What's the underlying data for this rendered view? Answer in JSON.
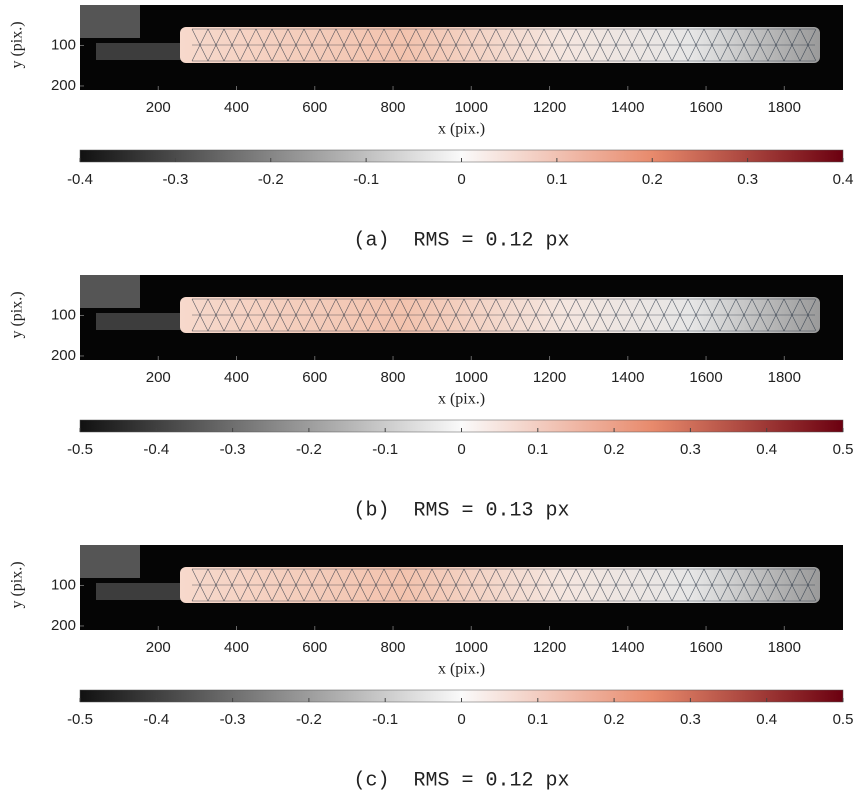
{
  "chart_data": [
    {
      "type": "image",
      "xlabel": "x (pix.)",
      "ylabel": "y (pix.)",
      "xlim": [
        0,
        1950
      ],
      "xticks": [
        200,
        400,
        600,
        800,
        1000,
        1200,
        1400,
        1600,
        1800
      ],
      "ylim": [
        0,
        210
      ],
      "yticks": [
        100,
        200
      ],
      "clim": [
        -0.4,
        0.4
      ],
      "cticks": [
        -0.4,
        -0.3,
        -0.2,
        -0.1,
        0,
        0.1,
        0.2,
        0.3,
        0.4
      ],
      "caption": "(a)  RMS = 0.12 px"
    },
    {
      "type": "image",
      "xlabel": "x (pix.)",
      "ylabel": "y (pix.)",
      "xlim": [
        0,
        1950
      ],
      "xticks": [
        200,
        400,
        600,
        800,
        1000,
        1200,
        1400,
        1600,
        1800
      ],
      "ylim": [
        0,
        210
      ],
      "yticks": [
        100,
        200
      ],
      "clim": [
        -0.5,
        0.5
      ],
      "cticks": [
        -0.5,
        -0.4,
        -0.3,
        -0.2,
        -0.1,
        0,
        0.1,
        0.2,
        0.3,
        0.4,
        0.5
      ],
      "caption": "(b)  RMS = 0.13 px"
    },
    {
      "type": "image",
      "xlabel": "x (pix.)",
      "ylabel": "y (pix.)",
      "xlim": [
        0,
        1950
      ],
      "xticks": [
        200,
        400,
        600,
        800,
        1000,
        1200,
        1400,
        1600,
        1800
      ],
      "ylim": [
        0,
        210
      ],
      "yticks": [
        100,
        200
      ],
      "clim": [
        -0.5,
        0.5
      ],
      "cticks": [
        -0.5,
        -0.4,
        -0.3,
        -0.2,
        -0.1,
        0,
        0.1,
        0.2,
        0.3,
        0.4,
        0.5
      ],
      "caption": "(c)  RMS = 0.12 px"
    }
  ]
}
